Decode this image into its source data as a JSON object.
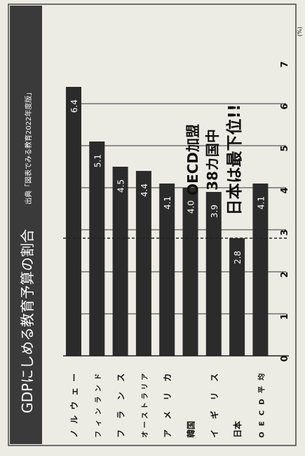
{
  "chart_data": {
    "type": "bar",
    "orientation": "horizontal",
    "title": "GDPにしめる教育予算の割合",
    "source": "出典「図表でみる教育2022年度版」",
    "unit": "(%)",
    "categories": [
      "ノルウェー",
      "フィンランド",
      "フランス",
      "オーストラリア",
      "アメリカ",
      "韓国",
      "イギリス",
      "日本",
      "OECD平均"
    ],
    "values": [
      6.4,
      5.1,
      4.5,
      4.4,
      4.1,
      4.0,
      3.9,
      2.8,
      4.1
    ],
    "value_labels": [
      "6.4",
      "5.1",
      "4.5",
      "4.4",
      "4.1",
      "4.0",
      "3.9",
      "2.8",
      "4.1"
    ],
    "xlim": [
      0,
      7
    ],
    "ticks": [
      "0",
      "1",
      "2",
      "3",
      "4",
      "5",
      "6",
      "7"
    ],
    "reference_line": {
      "value": 2.8,
      "style": "dashed"
    },
    "annotation": [
      "OECD加盟",
      "38カ国中",
      "日本は最下位!!"
    ],
    "grid": true,
    "colors": {
      "bar": "#2b2b2b",
      "title_bg": "#3a3a3a",
      "background": "#ecebe4",
      "text": "#111111"
    }
  }
}
